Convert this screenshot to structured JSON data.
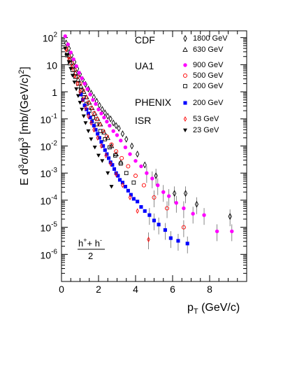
{
  "chart_data": {
    "type": "scatter",
    "ylabel": "E d³σ/dp³ [mb/(GeV/c)²]",
    "xlabel": "pT (GeV/c)",
    "x_range": [
      0,
      10
    ],
    "y_log_range": [
      -7,
      2.25
    ],
    "y_scale": "log",
    "grid": false,
    "x_ticks": [
      "0",
      "2",
      "4",
      "6",
      "8"
    ],
    "x_tick_values": [
      0,
      2,
      4,
      6,
      8
    ],
    "y_ticks": [
      {
        "exp": 2,
        "base": "10",
        "sup": "2"
      },
      {
        "exp": 1,
        "base": "10",
        "sup": ""
      },
      {
        "exp": 0,
        "base": "1",
        "sup": ""
      },
      {
        "exp": -1,
        "base": "10",
        "sup": "-1"
      },
      {
        "exp": -2,
        "base": "10",
        "sup": "-2"
      },
      {
        "exp": -3,
        "base": "10",
        "sup": "-3"
      },
      {
        "exp": -4,
        "base": "10",
        "sup": "-4"
      },
      {
        "exp": -5,
        "base": "10",
        "sup": "-5"
      },
      {
        "exp": -6,
        "base": "10",
        "sup": "-6"
      }
    ],
    "legend_groups": [
      "CDF",
      "UA1",
      "PHENIX",
      "ISR"
    ],
    "formula": {
      "numerator": "h⁺+ h⁻",
      "denominator": "2"
    },
    "series": [
      {
        "name": "1800 GeV",
        "marker": "diamond-open",
        "color": "#000000",
        "points": [
          [
            0.25,
            1.8
          ],
          [
            0.4,
            1.6
          ],
          [
            0.55,
            1.35
          ],
          [
            0.7,
            1.1
          ],
          [
            0.85,
            0.85
          ],
          [
            1.0,
            0.65
          ],
          [
            1.15,
            0.45
          ],
          [
            1.3,
            0.27
          ],
          [
            1.45,
            0.1
          ],
          [
            1.6,
            -0.05
          ],
          [
            1.75,
            -0.2
          ],
          [
            1.9,
            -0.35
          ],
          [
            2.05,
            -0.5
          ],
          [
            2.2,
            -0.65
          ],
          [
            2.35,
            -0.78
          ],
          [
            2.5,
            -0.9
          ],
          [
            2.65,
            -1.0
          ],
          [
            2.8,
            -1.15
          ],
          [
            2.95,
            -1.25
          ],
          [
            3.1,
            -1.35
          ],
          [
            3.3,
            -1.55
          ],
          [
            3.5,
            -1.75
          ],
          [
            3.8,
            -2.0
          ],
          [
            4.1,
            -2.3
          ],
          [
            4.5,
            -2.7
          ],
          [
            5.1,
            -3.1
          ],
          [
            6.1,
            -3.75
          ],
          [
            6.7,
            -3.75
          ],
          [
            7.3,
            -4.15
          ],
          [
            9.1,
            -4.6
          ]
        ]
      },
      {
        "name": "630 GeV",
        "marker": "triangle-open",
        "color": "#000000",
        "points": [
          [
            0.3,
            1.45
          ],
          [
            0.45,
            1.2
          ],
          [
            0.6,
            0.95
          ],
          [
            0.75,
            0.7
          ],
          [
            0.9,
            0.45
          ],
          [
            1.05,
            0.2
          ],
          [
            1.2,
            0.0
          ],
          [
            1.35,
            -0.2
          ],
          [
            1.5,
            -0.4
          ],
          [
            1.65,
            -0.6
          ],
          [
            1.8,
            -0.8
          ],
          [
            1.95,
            -1.0
          ],
          [
            2.1,
            -1.2
          ],
          [
            2.3,
            -1.5
          ],
          [
            2.5,
            -1.7
          ],
          [
            2.7,
            -2.0
          ],
          [
            2.95,
            -2.3
          ],
          [
            3.2,
            -2.6
          ]
        ]
      },
      {
        "name": "900 GeV",
        "marker": "circle-filled",
        "color": "#ff00ff",
        "points": [
          [
            0.2,
            2.05
          ],
          [
            0.35,
            1.75
          ],
          [
            0.5,
            1.45
          ],
          [
            0.65,
            1.2
          ],
          [
            0.8,
            0.95
          ],
          [
            0.95,
            0.7
          ],
          [
            1.1,
            0.5
          ],
          [
            1.25,
            0.3
          ],
          [
            1.4,
            0.1
          ],
          [
            1.55,
            -0.1
          ],
          [
            1.7,
            -0.3
          ],
          [
            1.85,
            -0.45
          ],
          [
            2.0,
            -0.65
          ],
          [
            2.15,
            -0.8
          ],
          [
            2.3,
            -0.95
          ],
          [
            2.45,
            -1.1
          ],
          [
            2.6,
            -1.25
          ],
          [
            2.8,
            -1.45
          ],
          [
            3.0,
            -1.6
          ],
          [
            3.2,
            -1.8
          ],
          [
            3.45,
            -2.05
          ],
          [
            3.7,
            -2.3
          ],
          [
            4.0,
            -2.55
          ],
          [
            4.3,
            -2.75
          ],
          [
            4.6,
            -3.0
          ],
          [
            4.9,
            -3.2
          ],
          [
            5.2,
            -3.45
          ],
          [
            5.5,
            -3.7
          ],
          [
            5.8,
            -3.85
          ],
          [
            6.2,
            -4.1
          ],
          [
            6.6,
            -4.3
          ],
          [
            7.1,
            -4.5
          ],
          [
            7.7,
            -4.55
          ],
          [
            8.4,
            -5.15
          ],
          [
            9.2,
            -5.15
          ]
        ]
      },
      {
        "name": "500 GeV",
        "marker": "circle-open",
        "color": "#ff0000",
        "points": [
          [
            0.25,
            1.6
          ],
          [
            0.4,
            1.3
          ],
          [
            0.55,
            1.05
          ],
          [
            0.7,
            0.8
          ],
          [
            0.85,
            0.55
          ],
          [
            1.0,
            0.3
          ],
          [
            1.15,
            0.05
          ],
          [
            1.3,
            -0.2
          ],
          [
            1.45,
            -0.4
          ],
          [
            1.6,
            -0.6
          ],
          [
            1.75,
            -0.8
          ],
          [
            1.9,
            -1.0
          ],
          [
            2.05,
            -1.2
          ],
          [
            2.25,
            -1.45
          ],
          [
            2.45,
            -1.65
          ],
          [
            2.7,
            -1.95
          ],
          [
            2.95,
            -2.2
          ],
          [
            3.25,
            -2.45
          ],
          [
            3.6,
            -2.75
          ],
          [
            4.0,
            -3.1
          ],
          [
            4.45,
            -3.45
          ],
          [
            5.0,
            -3.9
          ],
          [
            5.7,
            -4.3
          ],
          [
            6.6,
            -5.0
          ]
        ]
      },
      {
        "name": "200 GeV",
        "marker": "square-open",
        "color": "#000000",
        "points": [
          [
            0.3,
            1.35
          ],
          [
            0.45,
            1.05
          ],
          [
            0.6,
            0.8
          ],
          [
            0.75,
            0.55
          ],
          [
            0.9,
            0.3
          ],
          [
            1.05,
            0.05
          ],
          [
            1.2,
            -0.2
          ],
          [
            1.35,
            -0.45
          ],
          [
            1.5,
            -0.7
          ],
          [
            1.7,
            -0.95
          ],
          [
            1.9,
            -1.2
          ],
          [
            2.1,
            -1.45
          ],
          [
            2.35,
            -1.75
          ],
          [
            2.6,
            -2.05
          ],
          [
            2.9,
            -2.35
          ],
          [
            3.2,
            -2.65
          ],
          [
            3.5,
            -3.0
          ],
          [
            3.9,
            -3.35
          ]
        ]
      },
      {
        "name": "200 GeV",
        "marker": "square-filled",
        "color": "#0000ff",
        "points": [
          [
            1.05,
            -0.1
          ],
          [
            1.15,
            -0.3
          ],
          [
            1.25,
            -0.5
          ],
          [
            1.35,
            -0.65
          ],
          [
            1.45,
            -0.8
          ],
          [
            1.55,
            -0.95
          ],
          [
            1.65,
            -1.1
          ],
          [
            1.75,
            -1.25
          ],
          [
            1.85,
            -1.4
          ],
          [
            1.95,
            -1.55
          ],
          [
            2.05,
            -1.7
          ],
          [
            2.15,
            -1.85
          ],
          [
            2.25,
            -2.0
          ],
          [
            2.35,
            -2.15
          ],
          [
            2.45,
            -2.3
          ],
          [
            2.55,
            -2.45
          ],
          [
            2.65,
            -2.6
          ],
          [
            2.75,
            -2.7
          ],
          [
            2.85,
            -2.85
          ],
          [
            2.95,
            -3.0
          ],
          [
            3.05,
            -3.1
          ],
          [
            3.15,
            -3.25
          ],
          [
            3.3,
            -3.35
          ],
          [
            3.45,
            -3.5
          ],
          [
            3.6,
            -3.65
          ],
          [
            3.75,
            -3.8
          ],
          [
            3.9,
            -3.95
          ],
          [
            4.1,
            -4.05
          ],
          [
            4.3,
            -4.25
          ],
          [
            4.5,
            -4.4
          ],
          [
            4.75,
            -4.55
          ],
          [
            5.0,
            -4.75
          ],
          [
            5.25,
            -4.9
          ],
          [
            5.6,
            -5.1
          ],
          [
            5.9,
            -5.4
          ],
          [
            6.3,
            -5.5
          ],
          [
            6.8,
            -5.6
          ]
        ]
      },
      {
        "name": "53 GeV",
        "marker": "diamond-small-open",
        "color": "#ff0000",
        "points": [
          [
            0.25,
            1.55
          ],
          [
            0.4,
            1.2
          ],
          [
            0.55,
            0.9
          ],
          [
            0.7,
            0.6
          ],
          [
            0.85,
            0.3
          ],
          [
            1.0,
            0.0
          ],
          [
            1.15,
            -0.3
          ],
          [
            1.3,
            -0.6
          ],
          [
            1.45,
            -0.9
          ],
          [
            1.6,
            -1.15
          ],
          [
            1.75,
            -1.4
          ],
          [
            1.95,
            -1.7
          ],
          [
            2.15,
            -2.0
          ],
          [
            2.4,
            -2.35
          ],
          [
            2.65,
            -2.65
          ],
          [
            2.95,
            -3.05
          ],
          [
            3.3,
            -3.45
          ],
          [
            3.7,
            -3.9
          ],
          [
            4.1,
            -4.4
          ],
          [
            4.7,
            -5.45
          ]
        ]
      },
      {
        "name": "23 GeV",
        "marker": "triangle-down-filled",
        "color": "#000000",
        "points": [
          [
            0.2,
            1.6
          ],
          [
            0.3,
            1.35
          ],
          [
            0.4,
            1.1
          ],
          [
            0.5,
            0.85
          ],
          [
            0.6,
            0.6
          ],
          [
            0.7,
            0.35
          ],
          [
            0.8,
            0.1
          ],
          [
            0.9,
            -0.15
          ],
          [
            1.0,
            -0.4
          ],
          [
            1.1,
            -0.65
          ],
          [
            1.2,
            -0.9
          ],
          [
            1.3,
            -1.15
          ],
          [
            1.45,
            -1.45
          ],
          [
            1.6,
            -1.75
          ],
          [
            1.8,
            -2.05
          ],
          [
            2.0,
            -2.35
          ],
          [
            2.2,
            -2.55
          ],
          [
            2.5,
            -3.0
          ],
          [
            2.7,
            -3.5
          ]
        ]
      }
    ]
  }
}
